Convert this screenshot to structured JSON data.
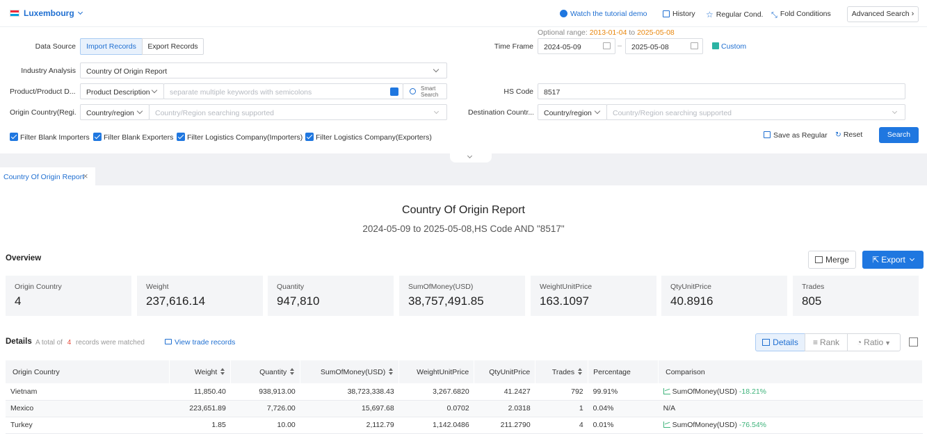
{
  "header": {
    "country": "Luxembourg",
    "tutorial": "Watch the tutorial demo",
    "history": "History",
    "regular_cond": "Regular Cond.",
    "fold_conditions": "Fold Conditions",
    "advanced_search": "Advanced Search"
  },
  "form": {
    "data_source_label": "Data Source",
    "import_records": "Import Records",
    "export_records": "Export Records",
    "optional_range_label": "Optional range:",
    "optional_range_start": "2013-01-04",
    "optional_range_to": "to",
    "optional_range_end": "2025-05-08",
    "time_frame_label": "Time Frame",
    "time_from": "2024-05-09",
    "time_sep": "–",
    "time_to": "2025-05-08",
    "custom": "Custom",
    "industry_label": "Industry Analysis",
    "industry_value": "Country Of Origin Report",
    "product_label": "Product/Product D...",
    "product_type": "Product Description",
    "keywords_placeholder": "separate multiple keywords with semicolons",
    "smart_search_line1": "Smart",
    "smart_search_line2": "Search",
    "hs_label": "HS Code",
    "hs_value": "8517",
    "origin_label": "Origin Country(Regi...",
    "origin_type": "Country/region",
    "origin_placeholder": "Country/Region searching supported",
    "dest_label": "Destination Countr...",
    "dest_type": "Country/region",
    "dest_placeholder": "Country/Region searching supported",
    "filters": [
      "Filter Blank Importers",
      "Filter Blank Exporters",
      "Filter Logistics Company(Importers)",
      "Filter Logistics Company(Exporters)"
    ],
    "save_regular": "Save as Regular",
    "reset": "Reset",
    "search": "Search"
  },
  "tab": {
    "label": "Country Of Origin Report"
  },
  "report": {
    "title": "Country Of Origin Report",
    "subtitle": "2024-05-09 to 2025-05-08,HS Code AND \"8517\""
  },
  "overview": {
    "label": "Overview",
    "merge": "Merge",
    "export": "Export",
    "cards": [
      {
        "title": "Origin Country",
        "value": "4"
      },
      {
        "title": "Weight",
        "value": "237,616.14"
      },
      {
        "title": "Quantity",
        "value": "947,810"
      },
      {
        "title": "SumOfMoney(USD)",
        "value": "38,757,491.85"
      },
      {
        "title": "WeightUnitPrice",
        "value": "163.1097"
      },
      {
        "title": "QtyUnitPrice",
        "value": "40.8916"
      },
      {
        "title": "Trades",
        "value": "805"
      }
    ]
  },
  "details": {
    "label": "Details",
    "total_prefix": "A total of",
    "total_count": "4",
    "total_suffix": "records were matched",
    "view_trade": "View trade records",
    "view_details": "Details",
    "view_rank": "Rank",
    "view_ratio": "Ratio",
    "columns": [
      "Origin Country",
      "Weight",
      "Quantity",
      "SumOfMoney(USD)",
      "WeightUnitPrice",
      "QtyUnitPrice",
      "Trades",
      "Percentage",
      "Comparison"
    ],
    "rows": [
      {
        "country": "Vietnam",
        "weight": "11,850.40",
        "quantity": "938,913.00",
        "sum": "38,723,338.43",
        "wup": "3,267.6820",
        "qup": "41.2427",
        "trades": "792",
        "pct": "99.91%",
        "cmp_label": "SumOfMoney(USD)",
        "cmp_val": "-18.21%"
      },
      {
        "country": "Mexico",
        "weight": "223,651.89",
        "quantity": "7,726.00",
        "sum": "15,697.68",
        "wup": "0.0702",
        "qup": "2.0318",
        "trades": "1",
        "pct": "0.04%",
        "cmp_label": "N/A",
        "cmp_val": ""
      },
      {
        "country": "Turkey",
        "weight": "1.85",
        "quantity": "10.00",
        "sum": "2,112.79",
        "wup": "1,142.0486",
        "qup": "211.2790",
        "trades": "4",
        "pct": "0.01%",
        "cmp_label": "SumOfMoney(USD)",
        "cmp_val": "-76.54%"
      }
    ]
  },
  "colors": {
    "accent": "#1f77e0",
    "link": "#1f6fd1",
    "orange": "#e8860c",
    "green": "#3db37a"
  }
}
